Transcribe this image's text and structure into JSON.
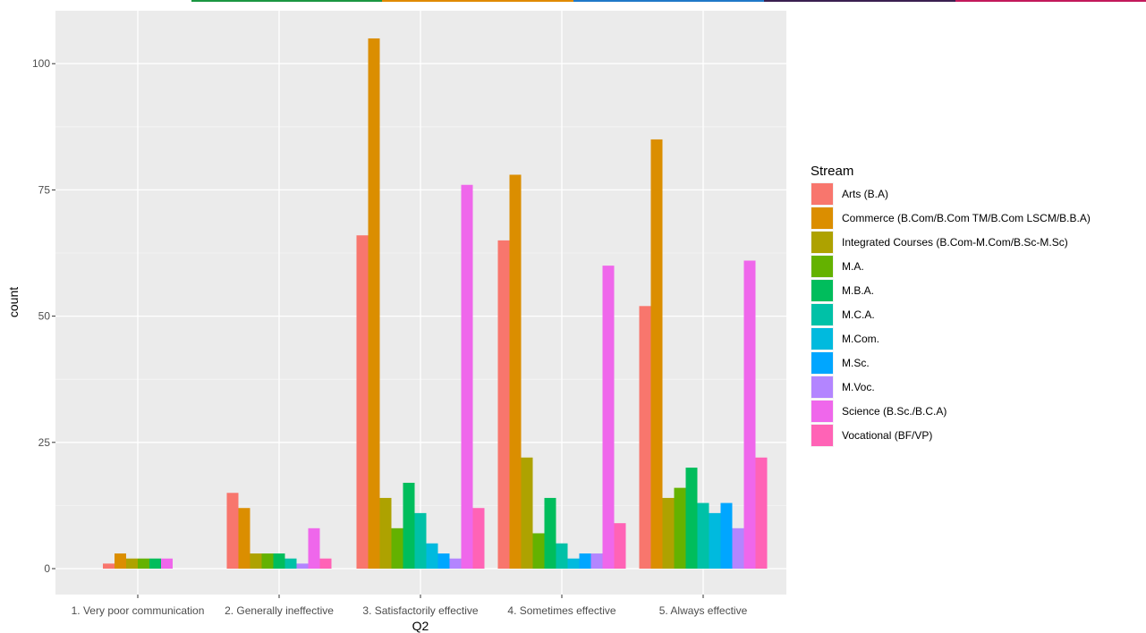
{
  "top_strip_colors": [
    "#ffffff",
    "#1a9641",
    "#e08a00",
    "#1f78c8",
    "#3a1f4f",
    "#c2185b"
  ],
  "chart_data": {
    "type": "bar",
    "xlabel": "Q2",
    "ylabel": "count",
    "ylim": [
      -3,
      108
    ],
    "y_ticks": [
      0,
      25,
      50,
      75,
      100
    ],
    "grid": true,
    "legend_position": "right",
    "categories": [
      "1. Very poor communication",
      "2. Generally ineffective",
      "3. Satisfactorily effective",
      "4. Sometimes effective",
      "5. Always effective"
    ],
    "legend_title": "Stream",
    "series": [
      {
        "name": "Arts (B.A)",
        "color": "#F8766D",
        "values": [
          1,
          15,
          66,
          65,
          52
        ]
      },
      {
        "name": "Commerce (B.Com/B.Com TM/B.Com LSCM/B.B.A)",
        "color": "#DB8E00",
        "values": [
          3,
          12,
          105,
          78,
          85
        ]
      },
      {
        "name": "Integrated Courses (B.Com-M.Com/B.Sc-M.Sc)",
        "color": "#AEA200",
        "values": [
          2,
          3,
          14,
          22,
          14
        ]
      },
      {
        "name": "M.A.",
        "color": "#64B200",
        "values": [
          2,
          3,
          8,
          7,
          16
        ]
      },
      {
        "name": "M.B.A.",
        "color": "#00BD5C",
        "values": [
          2,
          3,
          17,
          14,
          20
        ]
      },
      {
        "name": "M.C.A.",
        "color": "#00C1A7",
        "values": [
          null,
          2,
          11,
          5,
          13
        ]
      },
      {
        "name": "M.Com.",
        "color": "#00BADE",
        "values": [
          null,
          null,
          5,
          2,
          11
        ]
      },
      {
        "name": "M.Sc.",
        "color": "#00A6FF",
        "values": [
          null,
          null,
          3,
          3,
          13
        ]
      },
      {
        "name": "M.Voc.",
        "color": "#B385FF",
        "values": [
          null,
          1,
          2,
          3,
          8
        ]
      },
      {
        "name": "Science (B.Sc./B.C.A)",
        "color": "#EF67EB",
        "values": [
          2,
          8,
          76,
          60,
          61
        ]
      },
      {
        "name": "Vocational (BF/VP)",
        "color": "#FF63B6",
        "values": [
          null,
          2,
          12,
          9,
          22
        ]
      }
    ],
    "bar_layout": [
      [
        0,
        1,
        2,
        3,
        4,
        9
      ],
      [
        0,
        1,
        2,
        3,
        4,
        5,
        8,
        9,
        10
      ],
      [
        0,
        1,
        2,
        3,
        4,
        5,
        6,
        7,
        8,
        9,
        10
      ],
      [
        0,
        1,
        2,
        3,
        4,
        5,
        6,
        7,
        8,
        9,
        10
      ],
      [
        0,
        1,
        2,
        3,
        4,
        5,
        6,
        7,
        8,
        9,
        10
      ]
    ]
  }
}
